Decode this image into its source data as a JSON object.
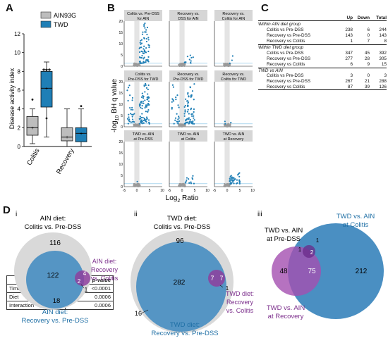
{
  "panel_labels": {
    "a": "A",
    "b": "B",
    "c": "C",
    "d": "D",
    "di": "i",
    "dii": "ii",
    "diii": "iii"
  },
  "colors": {
    "ain": "#bdbdbd",
    "twd": "#1f7fb6",
    "purple": "#7b2d8b",
    "gray_circle": "#d9d9d9",
    "blue_circle": "#4a8fc2"
  },
  "panelA": {
    "ylabel": "Disease activity index",
    "legend": [
      {
        "label": "AIN93G",
        "color": "#bdbdbd"
      },
      {
        "label": "TWD",
        "color": "#1f7fb6"
      }
    ],
    "significance": "***",
    "table": {
      "header": {
        "source": "Source",
        "p": "p-value"
      },
      "rows": [
        {
          "source": "Time point",
          "p": "<0.0001"
        },
        {
          "source": "Diet",
          "p": "0.0006"
        },
        {
          "source": "Interaction",
          "p": "0.0006"
        }
      ]
    }
  },
  "chart_data": [
    {
      "type": "box",
      "ylabel": "Disease activity index",
      "ylim": [
        0,
        12
      ],
      "yticks": [
        0,
        2,
        4,
        6,
        8,
        10,
        12
      ],
      "categories": [
        "Colitis",
        "Recovery"
      ],
      "series": [
        {
          "name": "AIN93G",
          "boxes": [
            {
              "min": 0.3,
              "q1": 1.2,
              "median": 2.0,
              "q3": 3.2,
              "max": 4.0,
              "outliers": [
                5.0
              ]
            },
            {
              "min": 0.0,
              "q1": 0.6,
              "median": 1.0,
              "q3": 2.0,
              "max": 4.0,
              "outliers": []
            }
          ]
        },
        {
          "name": "TWD",
          "boxes": [
            {
              "min": 1.0,
              "q1": 4.2,
              "median": 6.2,
              "q3": 8.0,
              "max": 9.0,
              "outliers": [
                3.0
              ]
            },
            {
              "min": 0.0,
              "q1": 0.5,
              "median": 1.4,
              "q3": 2.0,
              "max": 4.0,
              "outliers": [
                4.3
              ]
            }
          ]
        }
      ]
    }
  ],
  "panelB": {
    "ylabel_prefix": "-log",
    "ylabel_sub": "10",
    "ylabel_suffix": " BH q value",
    "xlabel_main": "Log",
    "xlabel_sub": "2",
    "xlabel_suffix": " Ratio",
    "yticks": [
      "0",
      "5",
      "10",
      "15",
      "20"
    ],
    "xticks": [
      "-5",
      "0",
      "5",
      "10"
    ],
    "titles": [
      [
        "Colitis vs. Pre-DSS",
        "for AIN"
      ],
      [
        "Recovery vs.",
        "DSS for AIN"
      ],
      [
        "Recovery vs.",
        "Colitis for AIN"
      ],
      [
        "Colitis vs.",
        "Pre-DSS for TWD"
      ],
      [
        "Recovery vs.",
        "Pre-DSS for TWD"
      ],
      [
        "Recovery vs.",
        "Colitis for TWD"
      ],
      [
        "TWD vs. AIN",
        "at Pre-DSS"
      ],
      [
        "TWD vs. AIN",
        "at Colitis"
      ],
      [
        "TWD vs. AIN",
        "at Recovery"
      ]
    ]
  },
  "panelC": {
    "headers": {
      "up": "Up",
      "down": "Down",
      "total": "Total"
    },
    "groups": [
      {
        "title": "Within AIN diet group",
        "rows": [
          {
            "label": "Colitis vs Pre-DSS",
            "up": "238",
            "down": "6",
            "total": "244"
          },
          {
            "label": "Recovery vs Pre-DSS",
            "up": "143",
            "down": "0",
            "total": "143"
          },
          {
            "label": "Recovery vs Colitis",
            "up": "1",
            "down": "7",
            "total": "8"
          }
        ]
      },
      {
        "title": "Within TWD diet group",
        "rows": [
          {
            "label": "Colitis vs Pre-DSS",
            "up": "347",
            "down": "45",
            "total": "392"
          },
          {
            "label": "Recovery vs Pre-DSS",
            "up": "277",
            "down": "28",
            "total": "305"
          },
          {
            "label": "Recovery vs Colitis",
            "up": "6",
            "down": "9",
            "total": "15"
          }
        ]
      },
      {
        "title": "TWD vs AIN",
        "rows": [
          {
            "label": "Colitis vs Pre-DSS",
            "up": "3",
            "down": "0",
            "total": "3"
          },
          {
            "label": "Recovery vs Pre-DSS",
            "up": "267",
            "down": "21",
            "total": "288"
          },
          {
            "label": "Recovery vs Colitis",
            "up": "87",
            "down": "39",
            "total": "126"
          }
        ]
      }
    ]
  },
  "panelD": {
    "i": {
      "title1": "AIN diet:",
      "title2": "Colitis vs. Pre-DSS",
      "n_gray": "116",
      "n_overlap": "122",
      "n_blue": "18",
      "blue_label1": "AIN diet:",
      "blue_label2": "Recovery vs. Pre-DSS",
      "purple_label1": "AIN diet:",
      "purple_label2": "Recovery",
      "purple_label3": "vs. Colitis",
      "n_p1": "4",
      "n_p2": "2",
      "n_p3": "1"
    },
    "ii": {
      "title1": "TWD diet:",
      "title2": "Colitis vs. Pre-DSS",
      "n_gray": "96",
      "n_overlap": "282",
      "n_blue": "16",
      "blue_label1": "TWD diet:",
      "blue_label2": "Recovery vs. Pre-DSS",
      "purple_label1": "TWD diet:",
      "purple_label2": "Recovery",
      "purple_label3": "vs. Colitis",
      "n_p1": "7",
      "n_p2": "7",
      "n_p3": "1"
    },
    "iii": {
      "pre_label1": "TWD vs. AIN",
      "pre_label2": "at Pre-DSS",
      "col_label1": "TWD vs. AIN",
      "col_label2": "at Colitis",
      "rec_label1": "TWD vs. AIN",
      "rec_label2": "at Recovery",
      "n_rec": "48",
      "n_overlap": "75",
      "n_col": "212",
      "n_small1": "1",
      "n_small2": "1",
      "n_small3": "2"
    }
  }
}
